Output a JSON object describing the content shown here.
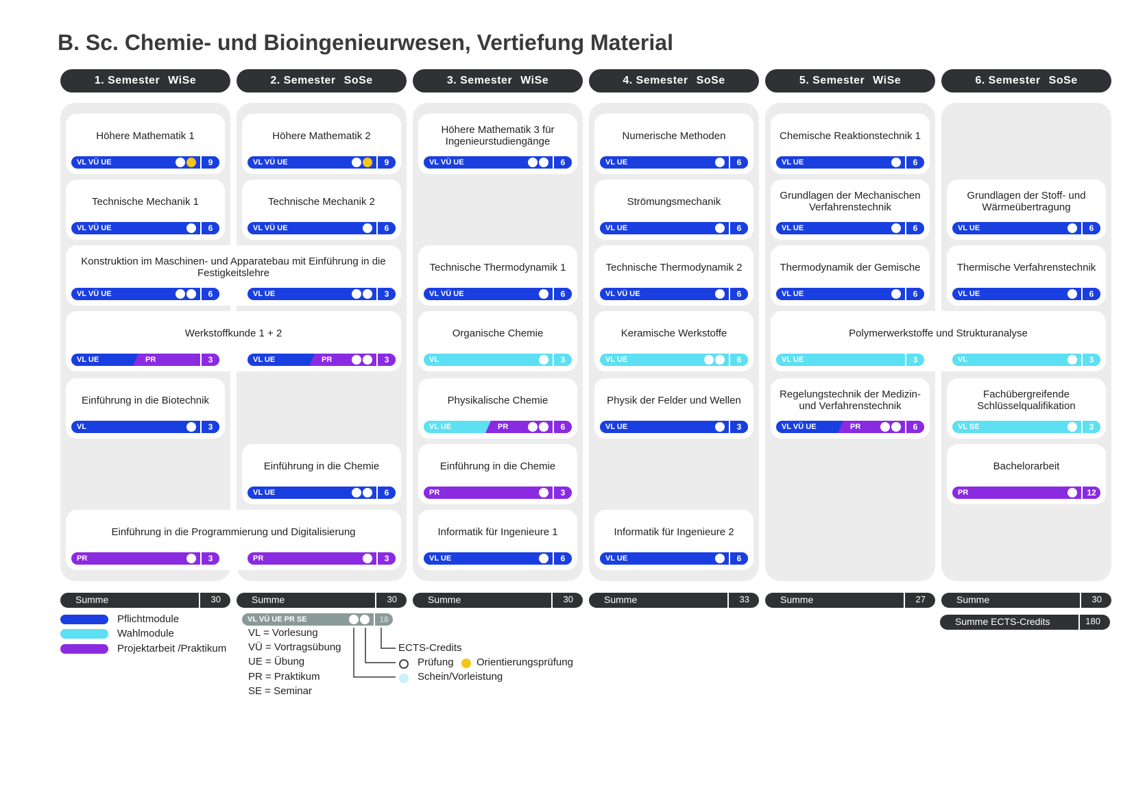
{
  "title": "B. Sc. Chemie- und Bioingenieurwesen, Vertiefung Material",
  "colors": {
    "pflicht": "#1a3fe0",
    "wahl": "#5ce0f2",
    "projekt": "#8a2be2",
    "header": "#2f3134",
    "gelb": "#f5c518"
  },
  "semesters": [
    {
      "label": "1. Semester",
      "term": "WiSe",
      "sum_label": "Summe",
      "sum": "30"
    },
    {
      "label": "2. Semester",
      "term": "SoSe",
      "sum_label": "Summe",
      "sum": "30"
    },
    {
      "label": "3. Semester",
      "term": "WiSe",
      "sum_label": "Summe",
      "sum": "30"
    },
    {
      "label": "4. Semester",
      "term": "SoSe",
      "sum_label": "Summe",
      "sum": "33"
    },
    {
      "label": "5. Semester",
      "term": "WiSe",
      "sum_label": "Summe",
      "sum": "27"
    },
    {
      "label": "6. Semester",
      "term": "SoSe",
      "sum_label": "Summe",
      "sum": "30"
    }
  ],
  "total": {
    "label": "Summe ECTS-Credits",
    "value": "180"
  },
  "modules": [
    {
      "name": "Höhere Mathematik 1",
      "col": 0,
      "row": 0,
      "span": 1,
      "bars": [
        {
          "col": 0,
          "type": "pflicht",
          "label": "VL VÜ UE",
          "dots": [
            "white",
            "yellow"
          ],
          "ects": "9"
        }
      ]
    },
    {
      "name": "Höhere Mathematik 2",
      "col": 1,
      "row": 0,
      "span": 1,
      "bars": [
        {
          "col": 1,
          "type": "pflicht",
          "label": "VL VÜ UE",
          "dots": [
            "white",
            "yellow"
          ],
          "ects": "9"
        }
      ]
    },
    {
      "name": "Höhere Mathematik 3 für Ingenieurstudiengänge",
      "col": 2,
      "row": 0,
      "span": 1,
      "bars": [
        {
          "col": 2,
          "type": "pflicht",
          "label": "VL VÜ UE",
          "dots": [
            "white",
            "white"
          ],
          "ects": "6"
        }
      ]
    },
    {
      "name": "Numerische Methoden",
      "col": 3,
      "row": 0,
      "span": 1,
      "bars": [
        {
          "col": 3,
          "type": "pflicht",
          "label": "VL UE",
          "dots": [
            "white"
          ],
          "ects": "6"
        }
      ]
    },
    {
      "name": "Chemische Reaktionstechnik 1",
      "col": 4,
      "row": 0,
      "span": 1,
      "bars": [
        {
          "col": 4,
          "type": "pflicht",
          "label": "VL UE",
          "dots": [
            "white"
          ],
          "ects": "6"
        }
      ]
    },
    {
      "name": "Technische Mechanik 1",
      "col": 0,
      "row": 1,
      "span": 1,
      "bars": [
        {
          "col": 0,
          "type": "pflicht",
          "label": "VL VÜ UE",
          "dots": [
            "white"
          ],
          "ects": "6"
        }
      ]
    },
    {
      "name": "Technische Mechanik 2",
      "col": 1,
      "row": 1,
      "span": 1,
      "bars": [
        {
          "col": 1,
          "type": "pflicht",
          "label": "VL VÜ UE",
          "dots": [
            "white"
          ],
          "ects": "6"
        }
      ]
    },
    {
      "name": "Strömungsmechanik",
      "col": 3,
      "row": 1,
      "span": 1,
      "bars": [
        {
          "col": 3,
          "type": "pflicht",
          "label": "VL UE",
          "dots": [
            "white"
          ],
          "ects": "6"
        }
      ]
    },
    {
      "name": "Grundlagen der Mechanischen Verfahrenstechnik",
      "col": 4,
      "row": 1,
      "span": 1,
      "bars": [
        {
          "col": 4,
          "type": "pflicht",
          "label": "VL UE",
          "dots": [
            "white"
          ],
          "ects": "6"
        }
      ]
    },
    {
      "name": "Grundlagen der Stoff- und Wärmeübertragung",
      "col": 5,
      "row": 1,
      "span": 1,
      "bars": [
        {
          "col": 5,
          "type": "pflicht",
          "label": "VL UE",
          "dots": [
            "white"
          ],
          "ects": "6"
        }
      ]
    },
    {
      "name": "Konstruktion im Maschinen- und Apparatebau mit Einführung in die Festigkeitslehre",
      "col": 0,
      "row": 2,
      "span": 2,
      "bars": [
        {
          "col": 0,
          "type": "pflicht",
          "label": "VL VÜ UE",
          "dots": [
            "white",
            "white"
          ],
          "ects": "6"
        },
        {
          "col": 1,
          "type": "pflicht",
          "label": "VL UE",
          "dots": [
            "white",
            "white"
          ],
          "ects": "3"
        }
      ]
    },
    {
      "name": "Technische Thermodynamik 1",
      "col": 2,
      "row": 2,
      "span": 1,
      "bars": [
        {
          "col": 2,
          "type": "pflicht",
          "label": "VL VÜ UE",
          "dots": [
            "white"
          ],
          "ects": "6"
        }
      ]
    },
    {
      "name": "Technische Thermodynamik 2",
      "col": 3,
      "row": 2,
      "span": 1,
      "bars": [
        {
          "col": 3,
          "type": "pflicht",
          "label": "VL VÜ UE",
          "dots": [
            "white"
          ],
          "ects": "6"
        }
      ]
    },
    {
      "name": "Thermodynamik der Gemische",
      "col": 4,
      "row": 2,
      "span": 1,
      "bars": [
        {
          "col": 4,
          "type": "pflicht",
          "label": "VL UE",
          "dots": [
            "white"
          ],
          "ects": "6"
        }
      ]
    },
    {
      "name": "Thermische Verfahrenstechnik",
      "col": 5,
      "row": 2,
      "span": 1,
      "bars": [
        {
          "col": 5,
          "type": "pflicht",
          "label": "VL UE",
          "dots": [
            "white"
          ],
          "ects": "6"
        }
      ]
    },
    {
      "name": "Werkstoffkunde 1 + 2",
      "col": 0,
      "row": 3,
      "span": 2,
      "bars": [
        {
          "col": 0,
          "type": "pflicht",
          "label": "VL UE",
          "type2": "projekt",
          "label2": "PR",
          "dots": [],
          "ects": "3",
          "ects_type": "projekt"
        },
        {
          "col": 1,
          "type": "pflicht",
          "label": "VL UE",
          "type2": "projekt",
          "label2": "PR",
          "dots": [
            "white",
            "white"
          ],
          "ects": "3",
          "ects_type": "projekt"
        }
      ]
    },
    {
      "name": "Organische Chemie",
      "col": 2,
      "row": 3,
      "span": 1,
      "bars": [
        {
          "col": 2,
          "type": "wahl",
          "label": "VL",
          "dots": [
            "white"
          ],
          "ects": "3"
        }
      ]
    },
    {
      "name": "Keramische Werkstoffe",
      "col": 3,
      "row": 3,
      "span": 1,
      "bars": [
        {
          "col": 3,
          "type": "wahl",
          "label": "VL UE",
          "dots": [
            "white",
            "white"
          ],
          "ects": "6"
        }
      ]
    },
    {
      "name": "Polymerwerkstoffe und Strukturanalyse",
      "col": 4,
      "row": 3,
      "span": 2,
      "bars": [
        {
          "col": 4,
          "type": "wahl",
          "label": "VL UE",
          "dots": [],
          "ects": "3"
        },
        {
          "col": 5,
          "type": "wahl",
          "label": "VL",
          "dots": [
            "white"
          ],
          "ects": "3"
        }
      ]
    },
    {
      "name": "Einführung in die Biotechnik",
      "col": 0,
      "row": 4,
      "span": 1,
      "bars": [
        {
          "col": 0,
          "type": "pflicht",
          "label": "VL",
          "dots": [
            "white"
          ],
          "ects": "3"
        }
      ]
    },
    {
      "name": "Physikalische Chemie",
      "col": 2,
      "row": 4,
      "span": 1,
      "bars": [
        {
          "col": 2,
          "type": "wahl",
          "label": "VL UE",
          "type2": "projekt",
          "label2": "PR",
          "dots": [
            "white",
            "white"
          ],
          "ects": "6",
          "ects_type": "projekt"
        }
      ]
    },
    {
      "name": "Physik der Felder und Wellen",
      "col": 3,
      "row": 4,
      "span": 1,
      "bars": [
        {
          "col": 3,
          "type": "pflicht",
          "label": "VL UE",
          "dots": [
            "white"
          ],
          "ects": "3"
        }
      ]
    },
    {
      "name": "Regelungstechnik der Medizin- und Verfahrenstechnik",
      "col": 4,
      "row": 4,
      "span": 1,
      "bars": [
        {
          "col": 4,
          "type": "pflicht",
          "label": "VL VÜ UE",
          "type2": "projekt",
          "label2": "PR",
          "dots": [
            "white",
            "white"
          ],
          "ects": "6",
          "ects_type": "projekt"
        }
      ]
    },
    {
      "name": "Fachübergreifende Schlüsselqualifikation",
      "col": 5,
      "row": 4,
      "span": 1,
      "bars": [
        {
          "col": 5,
          "type": "wahl",
          "label": "VL SE",
          "dots": [
            "white"
          ],
          "ects": "3"
        }
      ]
    },
    {
      "name": "Einführung in die Chemie",
      "col": 1,
      "row": 5,
      "span": 1,
      "bars": [
        {
          "col": 1,
          "type": "pflicht",
          "label": "VL UE",
          "dots": [
            "white",
            "white"
          ],
          "ects": "6"
        }
      ]
    },
    {
      "name": "Einführung in die Chemie",
      "col": 2,
      "row": 5,
      "span": 1,
      "bars": [
        {
          "col": 2,
          "type": "projekt",
          "label": "PR",
          "dots": [
            "white"
          ],
          "ects": "3"
        }
      ]
    },
    {
      "name": "Bachelorarbeit",
      "col": 5,
      "row": 5,
      "span": 1,
      "bars": [
        {
          "col": 5,
          "type": "projekt",
          "label": "PR",
          "dots": [
            "white"
          ],
          "ects": "12"
        }
      ]
    },
    {
      "name": "Einführung in die Programmierung und Digitalisierung",
      "col": 0,
      "row": 6,
      "span": 2,
      "bars": [
        {
          "col": 0,
          "type": "projekt",
          "label": "PR",
          "dots": [
            "white"
          ],
          "ects": "3"
        },
        {
          "col": 1,
          "type": "projekt",
          "label": "PR",
          "dots": [
            "white"
          ],
          "ects": "3"
        }
      ]
    },
    {
      "name": "Informatik für Ingenieure 1",
      "col": 2,
      "row": 6,
      "span": 1,
      "bars": [
        {
          "col": 2,
          "type": "pflicht",
          "label": "VL UE",
          "dots": [
            "white"
          ],
          "ects": "6"
        }
      ]
    },
    {
      "name": "Informatik für Ingenieure 2",
      "col": 3,
      "row": 6,
      "span": 1,
      "bars": [
        {
          "col": 3,
          "type": "pflicht",
          "label": "VL UE",
          "dots": [
            "white"
          ],
          "ects": "6"
        }
      ]
    }
  ],
  "legend": {
    "types": [
      {
        "type": "pflicht",
        "label": "Pflichtmodule"
      },
      {
        "type": "wahl",
        "label": "Wahlmodule"
      },
      {
        "type": "projekt",
        "label": "Projektarbeit /Praktikum"
      }
    ],
    "sample_bar": {
      "label": "VL VÜ UE PR SE",
      "ects": "18"
    },
    "abbreviations": [
      "VL = Vorlesung",
      "VÜ = Vortragsübung",
      "UE = Übung",
      "PR = Praktikum",
      "SE = Seminar"
    ],
    "ects": "ECTS-Credits",
    "pruefung": "Prüfung",
    "orientierung": "Orientierungsprüfung",
    "schein": "Schein/Vorleistung"
  }
}
